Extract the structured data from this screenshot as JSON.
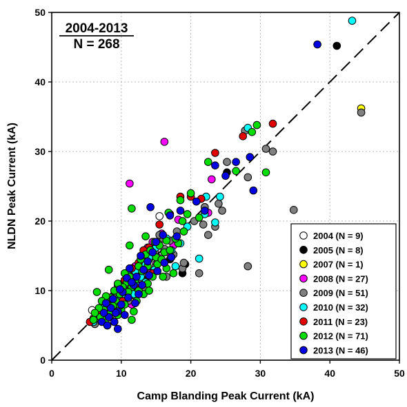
{
  "chart_data": {
    "type": "scatter",
    "title": "",
    "xlabel": "Camp Blanding Peak Current (kA)",
    "ylabel": "NLDN Peak Current (kA)",
    "xlim": [
      0,
      50
    ],
    "ylim": [
      0,
      50
    ],
    "xticks": [
      "0",
      "10",
      "20",
      "30",
      "40",
      "50"
    ],
    "yticks": [
      "0",
      "10",
      "20",
      "30",
      "40",
      "50"
    ],
    "grid": true,
    "legend_position": "bottom-right",
    "annotation": {
      "line1": "2004-2013",
      "line2": "N = 268"
    },
    "reference_line": {
      "style": "dashed",
      "from": [
        0,
        0
      ],
      "to": [
        50,
        50
      ]
    },
    "series": [
      {
        "name": "2004 (N = 9)",
        "color": "#ffffff",
        "points": [
          [
            5.8,
            7.2
          ],
          [
            10.5,
            11.2
          ],
          [
            12.5,
            10.5
          ],
          [
            15.5,
            20.7
          ],
          [
            9.5,
            8.5
          ],
          [
            13.5,
            12.0
          ],
          [
            8.8,
            7.8
          ],
          [
            11.2,
            10.0
          ],
          [
            14.0,
            14.5
          ]
        ]
      },
      {
        "name": "2005 (N = 8)",
        "color": "#000000",
        "points": [
          [
            41.0,
            45.2
          ],
          [
            25.2,
            27.0
          ],
          [
            18.8,
            12.5
          ],
          [
            19.2,
            13.8
          ],
          [
            17.0,
            14.5
          ],
          [
            13.5,
            11.5
          ],
          [
            11.0,
            9.5
          ],
          [
            9.0,
            8.0
          ]
        ]
      },
      {
        "name": "2007 (N = 1)",
        "color": "#ffff00",
        "points": [
          [
            44.5,
            36.2
          ]
        ]
      },
      {
        "name": "2008 (N = 27)",
        "color": "#ff00ff",
        "points": [
          [
            16.2,
            31.4
          ],
          [
            11.2,
            25.4
          ],
          [
            23.0,
            26.0
          ],
          [
            22.0,
            22.0
          ],
          [
            22.5,
            21.2
          ],
          [
            18.2,
            20.2
          ],
          [
            14.5,
            17.0
          ],
          [
            15.8,
            18.2
          ],
          [
            13.0,
            14.8
          ],
          [
            12.0,
            13.5
          ],
          [
            10.2,
            11.0
          ],
          [
            9.0,
            9.5
          ],
          [
            16.8,
            15.5
          ],
          [
            11.8,
            12.2
          ],
          [
            13.8,
            16.2
          ],
          [
            8.5,
            8.2
          ],
          [
            7.8,
            7.0
          ],
          [
            10.8,
            9.2
          ],
          [
            12.8,
            10.2
          ],
          [
            15.0,
            13.8
          ],
          [
            17.5,
            16.5
          ],
          [
            9.8,
            10.5
          ],
          [
            14.2,
            12.5
          ],
          [
            11.5,
            8.0
          ],
          [
            8.2,
            6.5
          ],
          [
            12.2,
            11.8
          ],
          [
            15.2,
            14.8
          ]
        ]
      },
      {
        "name": "2009 (N = 51)",
        "color": "#808080",
        "points": [
          [
            44.5,
            35.6
          ],
          [
            34.8,
            21.6
          ],
          [
            30.8,
            30.4
          ],
          [
            31.8,
            30.0
          ],
          [
            28.2,
            26.3
          ],
          [
            28.2,
            13.5
          ],
          [
            25.2,
            28.5
          ],
          [
            27.8,
            33.0
          ],
          [
            24.5,
            21.5
          ],
          [
            23.5,
            19.2
          ],
          [
            22.5,
            18.0
          ],
          [
            21.8,
            19.5
          ],
          [
            18.8,
            13.2
          ],
          [
            19.0,
            14.0
          ],
          [
            21.2,
            12.5
          ],
          [
            17.0,
            17.2
          ],
          [
            16.0,
            17.5
          ],
          [
            15.5,
            18.0
          ],
          [
            14.5,
            16.0
          ],
          [
            14.0,
            14.5
          ],
          [
            13.2,
            12.5
          ],
          [
            12.5,
            10.5
          ],
          [
            12.0,
            11.0
          ],
          [
            11.0,
            11.5
          ],
          [
            10.0,
            10.2
          ],
          [
            9.5,
            9.0
          ],
          [
            9.2,
            8.0
          ],
          [
            8.8,
            9.2
          ],
          [
            8.5,
            6.5
          ],
          [
            7.5,
            6.5
          ],
          [
            6.5,
            6.0
          ],
          [
            6.2,
            5.2
          ],
          [
            8.0,
            5.0
          ],
          [
            9.0,
            5.5
          ],
          [
            11.0,
            8.5
          ],
          [
            12.0,
            9.2
          ],
          [
            13.5,
            10.2
          ],
          [
            16.5,
            12.0
          ],
          [
            17.5,
            15.2
          ],
          [
            15.0,
            13.5
          ],
          [
            10.5,
            10.8
          ],
          [
            12.8,
            13.2
          ],
          [
            14.8,
            15.5
          ],
          [
            16.2,
            16.0
          ],
          [
            18.0,
            18.5
          ],
          [
            20.5,
            20.0
          ],
          [
            22.0,
            22.0
          ],
          [
            24.0,
            22.5
          ],
          [
            13.0,
            11.5
          ],
          [
            11.5,
            9.8
          ],
          [
            9.8,
            7.5
          ]
        ]
      },
      {
        "name": "2010 (N = 32)",
        "color": "#00ffff",
        "points": [
          [
            43.2,
            48.8
          ],
          [
            28.2,
            33.4
          ],
          [
            24.2,
            23.5
          ],
          [
            23.5,
            19.8
          ],
          [
            22.0,
            21.0
          ],
          [
            22.2,
            23.5
          ],
          [
            21.2,
            14.6
          ],
          [
            19.5,
            19.2
          ],
          [
            17.8,
            13.5
          ],
          [
            18.5,
            16.8
          ],
          [
            16.5,
            17.5
          ],
          [
            15.0,
            16.2
          ],
          [
            14.0,
            14.8
          ],
          [
            13.2,
            13.8
          ],
          [
            12.8,
            12.0
          ],
          [
            12.0,
            12.8
          ],
          [
            11.2,
            11.5
          ],
          [
            10.5,
            10.0
          ],
          [
            10.0,
            9.2
          ],
          [
            9.5,
            8.8
          ],
          [
            8.8,
            8.2
          ],
          [
            8.2,
            6.8
          ],
          [
            7.5,
            7.5
          ],
          [
            7.0,
            6.2
          ],
          [
            6.0,
            5.5
          ],
          [
            11.8,
            9.5
          ],
          [
            13.5,
            11.2
          ],
          [
            14.8,
            13.0
          ],
          [
            16.0,
            14.2
          ],
          [
            17.2,
            15.8
          ],
          [
            12.2,
            10.8
          ],
          [
            10.8,
            12.5
          ]
        ]
      },
      {
        "name": "2011 (N = 23)",
        "color": "#e00000",
        "points": [
          [
            31.8,
            34.0
          ],
          [
            27.5,
            32.2
          ],
          [
            23.5,
            29.8
          ],
          [
            21.5,
            23.2
          ],
          [
            20.0,
            23.5
          ],
          [
            18.5,
            23.5
          ],
          [
            17.0,
            21.0
          ],
          [
            15.5,
            19.5
          ],
          [
            14.0,
            16.2
          ],
          [
            13.2,
            15.8
          ],
          [
            12.5,
            14.0
          ],
          [
            11.5,
            13.2
          ],
          [
            10.5,
            11.5
          ],
          [
            9.5,
            10.8
          ],
          [
            8.5,
            9.0
          ],
          [
            8.0,
            7.5
          ],
          [
            7.5,
            7.0
          ],
          [
            7.0,
            6.5
          ],
          [
            6.0,
            6.0
          ],
          [
            5.5,
            5.5
          ],
          [
            10.2,
            8.5
          ],
          [
            12.0,
            10.5
          ],
          [
            14.5,
            12.5
          ]
        ]
      },
      {
        "name": "2012 (N = 71)",
        "color": "#00dd00",
        "points": [
          [
            29.5,
            33.8
          ],
          [
            28.8,
            32.8
          ],
          [
            30.8,
            27.0
          ],
          [
            26.5,
            27.2
          ],
          [
            22.5,
            28.5
          ],
          [
            21.2,
            20.5
          ],
          [
            20.0,
            24.0
          ],
          [
            18.5,
            23.0
          ],
          [
            16.8,
            21.2
          ],
          [
            11.5,
            21.8
          ],
          [
            11.2,
            16.5
          ],
          [
            13.5,
            17.8
          ],
          [
            14.8,
            17.0
          ],
          [
            15.5,
            16.5
          ],
          [
            16.2,
            15.5
          ],
          [
            17.0,
            15.8
          ],
          [
            18.2,
            16.8
          ],
          [
            19.0,
            18.5
          ],
          [
            17.5,
            12.5
          ],
          [
            16.5,
            13.2
          ],
          [
            15.2,
            13.8
          ],
          [
            14.5,
            12.0
          ],
          [
            13.8,
            11.0
          ],
          [
            13.0,
            12.8
          ],
          [
            12.5,
            13.5
          ],
          [
            12.0,
            11.5
          ],
          [
            11.5,
            10.5
          ],
          [
            11.0,
            9.8
          ],
          [
            10.8,
            11.2
          ],
          [
            10.2,
            10.5
          ],
          [
            9.8,
            9.5
          ],
          [
            9.5,
            11.0
          ],
          [
            9.2,
            8.5
          ],
          [
            9.0,
            10.0
          ],
          [
            8.8,
            7.8
          ],
          [
            8.5,
            9.0
          ],
          [
            8.2,
            13.0
          ],
          [
            8.0,
            8.0
          ],
          [
            7.8,
            9.2
          ],
          [
            7.5,
            7.2
          ],
          [
            7.2,
            8.5
          ],
          [
            7.0,
            6.2
          ],
          [
            6.8,
            7.5
          ],
          [
            6.5,
            9.8
          ],
          [
            6.2,
            6.8
          ],
          [
            6.0,
            5.8
          ],
          [
            12.8,
            14.5
          ],
          [
            13.5,
            15.2
          ],
          [
            14.2,
            15.8
          ],
          [
            15.0,
            14.8
          ],
          [
            15.8,
            14.5
          ],
          [
            16.5,
            17.2
          ],
          [
            17.8,
            17.5
          ],
          [
            18.8,
            20.0
          ],
          [
            19.5,
            21.0
          ],
          [
            12.2,
            8.5
          ],
          [
            11.8,
            7.0
          ],
          [
            11.5,
            5.8
          ],
          [
            10.5,
            8.0
          ],
          [
            9.5,
            6.5
          ],
          [
            10.0,
            7.2
          ],
          [
            13.2,
            9.5
          ],
          [
            14.0,
            10.0
          ],
          [
            16.0,
            12.0
          ],
          [
            12.5,
            10.0
          ],
          [
            11.2,
            12.0
          ],
          [
            10.5,
            12.5
          ],
          [
            9.8,
            7.8
          ],
          [
            8.5,
            6.8
          ],
          [
            7.8,
            5.8
          ],
          [
            13.8,
            13.5
          ]
        ]
      },
      {
        "name": "2013 (N = 46)",
        "color": "#0000e0",
        "points": [
          [
            38.2,
            45.4
          ],
          [
            29.0,
            24.4
          ],
          [
            28.5,
            29.2
          ],
          [
            25.0,
            26.5
          ],
          [
            26.5,
            28.5
          ],
          [
            23.5,
            28.0
          ],
          [
            22.0,
            21.5
          ],
          [
            20.8,
            22.8
          ],
          [
            18.5,
            21.5
          ],
          [
            17.0,
            20.8
          ],
          [
            14.2,
            22.0
          ],
          [
            16.0,
            18.0
          ],
          [
            15.0,
            17.0
          ],
          [
            14.5,
            15.5
          ],
          [
            13.8,
            14.2
          ],
          [
            13.2,
            13.0
          ],
          [
            12.8,
            15.0
          ],
          [
            12.2,
            12.0
          ],
          [
            11.8,
            10.8
          ],
          [
            11.2,
            13.2
          ],
          [
            10.8,
            11.8
          ],
          [
            10.2,
            9.8
          ],
          [
            9.8,
            10.2
          ],
          [
            9.5,
            7.0
          ],
          [
            9.2,
            6.8
          ],
          [
            9.0,
            5.5
          ],
          [
            8.8,
            8.8
          ],
          [
            8.5,
            7.5
          ],
          [
            8.2,
            6.2
          ],
          [
            7.8,
            8.2
          ],
          [
            7.5,
            6.8
          ],
          [
            7.2,
            5.5
          ],
          [
            9.5,
            4.5
          ],
          [
            10.5,
            6.5
          ],
          [
            11.0,
            9.0
          ],
          [
            12.0,
            8.2
          ],
          [
            13.0,
            10.8
          ],
          [
            14.0,
            12.2
          ],
          [
            15.2,
            12.8
          ],
          [
            16.2,
            14.0
          ],
          [
            17.2,
            14.8
          ],
          [
            18.0,
            17.8
          ],
          [
            11.5,
            11.2
          ],
          [
            12.5,
            9.5
          ],
          [
            10.0,
            8.0
          ],
          [
            8.0,
            5.0
          ]
        ]
      }
    ]
  }
}
